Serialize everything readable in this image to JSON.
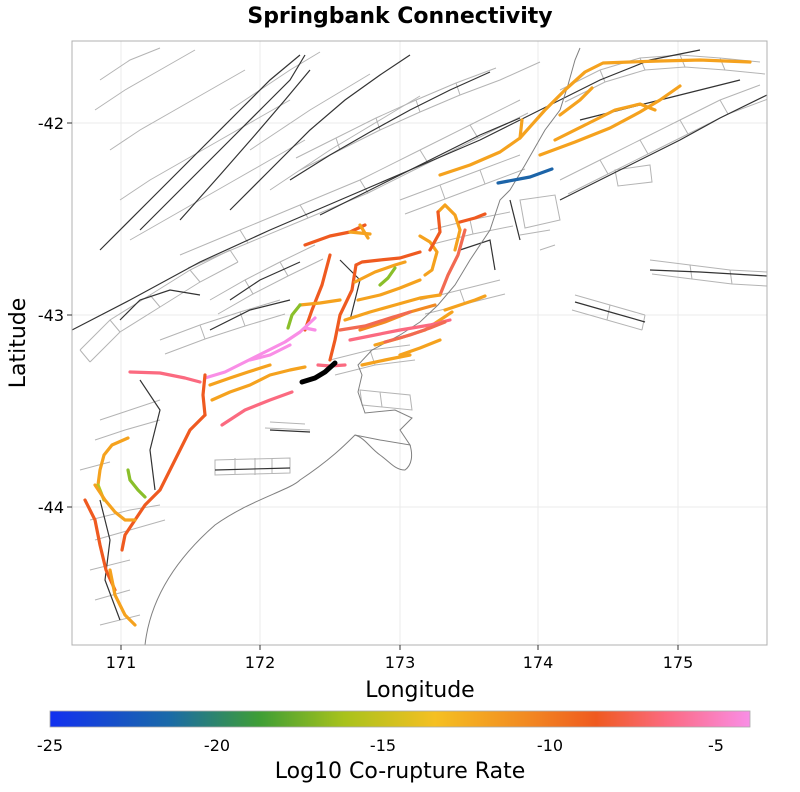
{
  "title": "Springbank Connectivity",
  "x_axis": {
    "label": "Longitude",
    "ticks": [
      "171",
      "172",
      "173",
      "174",
      "175"
    ]
  },
  "y_axis": {
    "label": "Latitude",
    "ticks": [
      "-42",
      "-43",
      "-44"
    ]
  },
  "colorbar": {
    "label": "Log10 Co-rupture Rate",
    "ticks": [
      "-25",
      "-20",
      "-15",
      "-10",
      "-5"
    ]
  },
  "colors": {
    "c25": "#1e3cf0",
    "c20": "#4aa52a",
    "c15": "#f5c022",
    "c10": "#ef5a20",
    "c5": "#f98ee6"
  }
}
